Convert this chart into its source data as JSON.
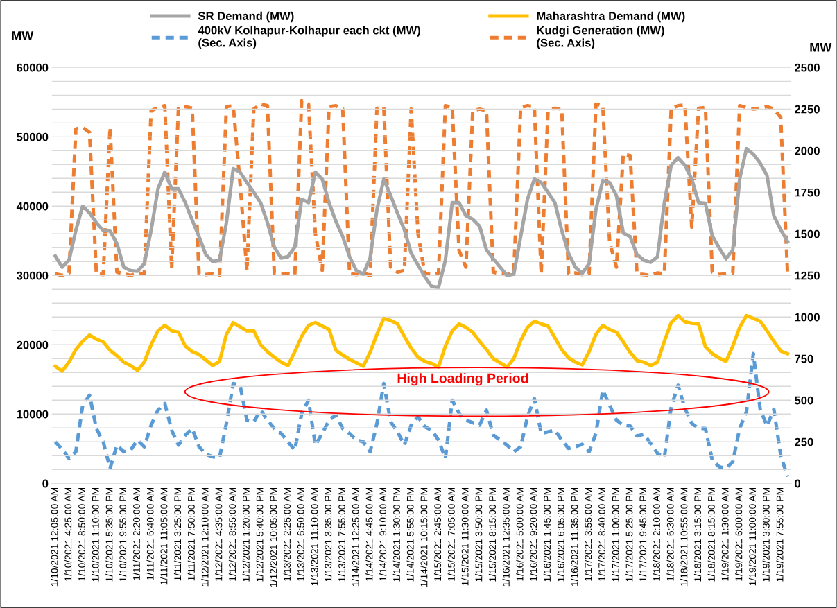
{
  "chart_data": {
    "type": "line",
    "categories": [
      "1/10/2021 12:05:00 AM",
      null,
      "1/10/2021 4:25:00 AM",
      null,
      "1/10/2021 8:50:00 AM",
      null,
      "1/10/2021 1:10:00 PM",
      null,
      "1/10/2021 5:35:00 PM",
      null,
      "1/10/2021 9:55:00 PM",
      null,
      "1/11/2021 2:20:00 AM",
      null,
      "1/11/2021 6:40:00 AM",
      null,
      "1/11/2021 11:05:00 AM",
      null,
      "1/11/2021 3:25:00 PM",
      null,
      "1/11/2021 7:50:00 PM",
      null,
      "1/12/2021 12:10:00 AM",
      null,
      "1/12/2021 4:35:00 AM",
      null,
      "1/12/2021 8:55:00 AM",
      null,
      "1/12/2021 1:20:00 PM",
      null,
      "1/12/2021 5:40:00 PM",
      null,
      "1/12/2021 10:05:00 PM",
      null,
      "1/13/2021 2:25:00 AM",
      null,
      "1/13/2021 6:50:00 AM",
      null,
      "1/13/2021 11:10:00 AM",
      null,
      "1/13/2021 3:35:00 PM",
      null,
      "1/13/2021 7:55:00 PM",
      null,
      "1/14/2021 12:25:00 AM",
      null,
      "1/14/2021 4:45:00 AM",
      null,
      "1/14/2021 9:10:00 AM",
      null,
      "1/14/2021 1:30:00 PM",
      null,
      "1/14/2021 5:55:00 PM",
      null,
      "1/14/2021 10:15:00 PM",
      null,
      "1/15/2021 2:45:00 AM",
      null,
      "1/15/2021 7:05:00 AM",
      null,
      "1/15/2021 11:30:00 AM",
      null,
      "1/15/2021 3:50:00 PM",
      null,
      "1/15/2021 8:15:00 PM",
      null,
      "1/16/2021 12:35:00 AM",
      null,
      "1/16/2021 5:00:00 AM",
      null,
      "1/16/2021 9:20:00 AM",
      null,
      "1/16/2021 1:45:00 PM",
      null,
      "1/16/2021 6:05:00 PM",
      null,
      "1/16/2021 11:35:00 PM",
      null,
      "1/17/2021 3:55:00 AM",
      null,
      "1/17/2021 8:40:00 AM",
      null,
      "1/17/2021 1:00:00 PM",
      null,
      "1/17/2021 5:25:00 PM",
      null,
      "1/17/2021 9:45:00 PM",
      null,
      "1/18/2021 2:10:00 AM",
      null,
      "1/18/2021 6:30:00 AM",
      null,
      "1/18/2021 10:55:00 AM",
      null,
      "1/18/2021 3:15:00 PM",
      null,
      "1/18/2021 8:15:00 PM",
      null,
      "1/19/2021 1:30:00 AM",
      null,
      "1/19/2021 6:00:00 AM",
      null,
      "1/19/2021 11:00:00 AM",
      null,
      "1/19/2021 3:30:00 PM",
      null,
      "1/19/2021 7:55:00 PM",
      null
    ],
    "series": [
      {
        "name": "SR Demand (MW)",
        "color": "#a5a5a5",
        "line_style": "solid",
        "values": [
          32800,
          31200,
          32200,
          36500,
          40000,
          39000,
          37600,
          36500,
          36400,
          34600,
          31200,
          30700,
          30600,
          31700,
          36500,
          42500,
          44900,
          42500,
          42500,
          40500,
          38000,
          35600,
          33000,
          32000,
          32200,
          37600,
          45400,
          44900,
          43400,
          42000,
          40500,
          37600,
          34100,
          32500,
          32700,
          34100,
          41000,
          40500,
          44900,
          43900,
          40500,
          37800,
          35600,
          32700,
          30700,
          30200,
          32500,
          39500,
          43900,
          41500,
          39000,
          36600,
          33200,
          31500,
          29800,
          28400,
          28300,
          32200,
          40500,
          40500,
          38600,
          38100,
          37100,
          33700,
          32400,
          31200,
          30000,
          30200,
          35600,
          41000,
          43900,
          43400,
          42000,
          40500,
          36500,
          33200,
          31200,
          30300,
          31700,
          39500,
          43700,
          43400,
          41500,
          36100,
          35600,
          33000,
          32200,
          31900,
          32700,
          40500,
          45900,
          47000,
          45900,
          43900,
          40500,
          40400,
          35700,
          34000,
          32400,
          33700,
          43900,
          48300,
          47500,
          46200,
          44400,
          38600,
          36600,
          34900
        ]
      },
      {
        "name": "Maharashtra Demand (MW)",
        "color": "#ffc000",
        "line_style": "solid",
        "values": [
          16900,
          16200,
          17500,
          19300,
          20500,
          21400,
          20800,
          20400,
          19200,
          18400,
          17500,
          17000,
          16300,
          17500,
          20000,
          22000,
          22800,
          22000,
          21800,
          19800,
          19000,
          18600,
          17800,
          17000,
          17600,
          21500,
          23200,
          22600,
          22000,
          22000,
          20000,
          19000,
          18200,
          17500,
          17000,
          19000,
          21200,
          22800,
          23200,
          22700,
          22200,
          19200,
          18500,
          17900,
          17400,
          16900,
          18900,
          21500,
          23800,
          23500,
          23000,
          21200,
          19500,
          18200,
          17600,
          17300,
          16800,
          19800,
          22000,
          23000,
          22500,
          21800,
          20500,
          19300,
          18000,
          17400,
          16800,
          18000,
          20600,
          22500,
          23400,
          23000,
          22700,
          21000,
          19300,
          18100,
          17500,
          17100,
          19000,
          21500,
          22800,
          22200,
          21800,
          20400,
          18900,
          17700,
          17500,
          17000,
          17500,
          20500,
          23200,
          24200,
          23300,
          23100,
          23000,
          19700,
          18700,
          18100,
          17600,
          19800,
          22500,
          24200,
          23800,
          23400,
          22000,
          20500,
          19100,
          18700
        ]
      },
      {
        "name": "400kV Kolhapur-Kolhapur each ckt (MW)\n(Sec. Axis)",
        "color": "#5b9bd5",
        "line_style": "dashed",
        "axis": "y2",
        "values": [
          250,
          205,
          150,
          190,
          470,
          530,
          330,
          250,
          90,
          230,
          190,
          200,
          260,
          220,
          350,
          440,
          480,
          320,
          230,
          290,
          330,
          220,
          175,
          160,
          155,
          360,
          600,
          590,
          380,
          370,
          440,
          380,
          330,
          300,
          250,
          200,
          420,
          500,
          230,
          300,
          380,
          410,
          330,
          300,
          260,
          250,
          190,
          360,
          600,
          370,
          310,
          230,
          350,
          400,
          340,
          320,
          260,
          150,
          500,
          420,
          380,
          365,
          350,
          440,
          290,
          260,
          230,
          190,
          220,
          400,
          510,
          300,
          310,
          320,
          260,
          210,
          220,
          235,
          190,
          300,
          560,
          470,
          380,
          350,
          345,
          285,
          295,
          240,
          180,
          155,
          460,
          590,
          450,
          360,
          330,
          330,
          140,
          100,
          90,
          130,
          330,
          430,
          780,
          445,
          345,
          445,
          170,
          40
        ]
      },
      {
        "name": "Kudgi Generation (MW)\n(Sec. Axis)",
        "color": "#ed7d31",
        "line_style": "dashed",
        "axis": "y2",
        "values": [
          1260,
          1250,
          1265,
          2130,
          2140,
          2110,
          1260,
          1255,
          2140,
          1270,
          1260,
          1250,
          1265,
          1260,
          2240,
          2260,
          2270,
          1290,
          2260,
          2265,
          2255,
          1260,
          1255,
          1260,
          1250,
          2265,
          2270,
          1800,
          1280,
          2250,
          2280,
          2270,
          1265,
          1260,
          1260,
          1255,
          2300,
          2280,
          1500,
          1280,
          2265,
          2270,
          2250,
          1260,
          1255,
          1265,
          1250,
          2255,
          2260,
          1300,
          1270,
          1280,
          2250,
          1500,
          1260,
          1255,
          1265,
          2270,
          2260,
          1400,
          1300,
          2240,
          2250,
          2240,
          1270,
          1260,
          1255,
          1265,
          2260,
          2270,
          2265,
          1260,
          2240,
          2255,
          2250,
          1260,
          1265,
          1255,
          1260,
          2280,
          2270,
          1450,
          1300,
          1980,
          1970,
          1260,
          1255,
          1250,
          1265,
          1260,
          2255,
          2270,
          2275,
          1540,
          2255,
          2260,
          1270,
          1255,
          1260,
          1265,
          2270,
          2260,
          2250,
          2255,
          2265,
          2250,
          2200,
          1265
        ]
      }
    ],
    "ylabel": "MW",
    "y2label": "MW",
    "ylim": [
      0,
      60000
    ],
    "yticks": [
      0,
      {
        "value": 2000,
        "label": null
      },
      {
        "value": 4000,
        "label": null
      },
      {
        "value": 6000,
        "label": null
      },
      {
        "value": 8000,
        "label": null
      },
      10000,
      {
        "value": 12000,
        "label": null
      },
      {
        "value": 14000,
        "label": null
      },
      {
        "value": 16000,
        "label": null
      },
      {
        "value": 18000,
        "label": null
      },
      20000,
      {
        "value": 22000,
        "label": null
      },
      {
        "value": 24000,
        "label": null
      },
      {
        "value": 26000,
        "label": null
      },
      {
        "value": 28000,
        "label": null
      },
      30000,
      {
        "value": 32000,
        "label": null
      },
      {
        "value": 34000,
        "label": null
      },
      {
        "value": 36000,
        "label": null
      },
      {
        "value": 38000,
        "label": null
      },
      40000,
      {
        "value": 42000,
        "label": null
      },
      {
        "value": 44000,
        "label": null
      },
      {
        "value": 46000,
        "label": null
      },
      {
        "value": 48000,
        "label": null
      },
      50000,
      {
        "value": 52000,
        "label": null
      },
      {
        "value": 54000,
        "label": null
      },
      {
        "value": 56000,
        "label": null
      },
      {
        "value": 58000,
        "label": null
      },
      60000
    ],
    "y2lim": [
      0,
      2500
    ],
    "y2ticks": [
      0,
      250,
      500,
      750,
      1000,
      1250,
      1500,
      1750,
      2000,
      2250,
      2500
    ],
    "grid": "y",
    "legend": "top",
    "marker": "none",
    "annotations": [
      "High Loading Period"
    ]
  }
}
